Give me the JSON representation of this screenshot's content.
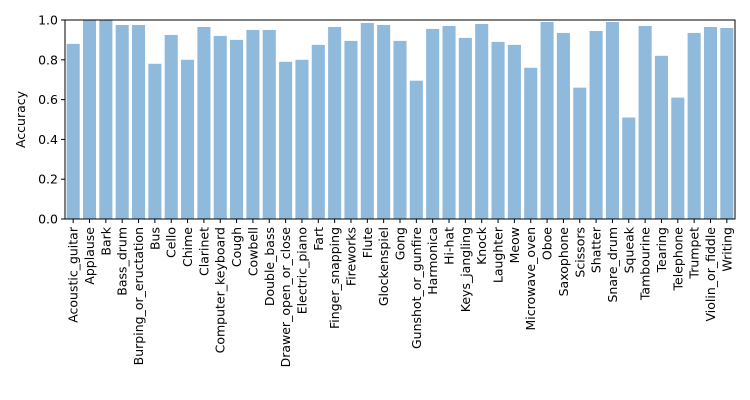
{
  "chart_data": {
    "type": "bar",
    "title": "",
    "xlabel": "",
    "ylabel": "Accuracy",
    "ylim": [
      0,
      1.0
    ],
    "yticks": [
      "0.0",
      "0.2",
      "0.4",
      "0.6",
      "0.8",
      "1.0"
    ],
    "grid": false,
    "bar_color": "#8fbadb",
    "categories": [
      "Acoustic_guitar",
      "Applause",
      "Bark",
      "Bass_drum",
      "Burping_or_eructation",
      "Bus",
      "Cello",
      "Chime",
      "Clarinet",
      "Computer_keyboard",
      "Cough",
      "Cowbell",
      "Double_bass",
      "Drawer_open_or_close",
      "Electric_piano",
      "Fart",
      "Finger_snapping",
      "Fireworks",
      "Flute",
      "Glockenspiel",
      "Gong",
      "Gunshot_or_gunfire",
      "Harmonica",
      "Hi-hat",
      "Keys_jangling",
      "Knock",
      "Laughter",
      "Meow",
      "Microwave_oven",
      "Oboe",
      "Saxophone",
      "Scissors",
      "Shatter",
      "Snare_drum",
      "Squeak",
      "Tambourine",
      "Tearing",
      "Telephone",
      "Trumpet",
      "Violin_or_fiddle",
      "Writing"
    ],
    "values": [
      0.88,
      1.0,
      1.0,
      0.975,
      0.975,
      0.78,
      0.925,
      0.8,
      0.965,
      0.92,
      0.9,
      0.95,
      0.95,
      0.79,
      0.8,
      0.875,
      0.965,
      0.895,
      0.985,
      0.975,
      0.895,
      0.695,
      0.955,
      0.97,
      0.91,
      0.98,
      0.89,
      0.875,
      0.76,
      0.99,
      0.935,
      0.66,
      0.945,
      0.99,
      0.51,
      0.97,
      0.82,
      0.61,
      0.935,
      0.965,
      0.96
    ]
  }
}
